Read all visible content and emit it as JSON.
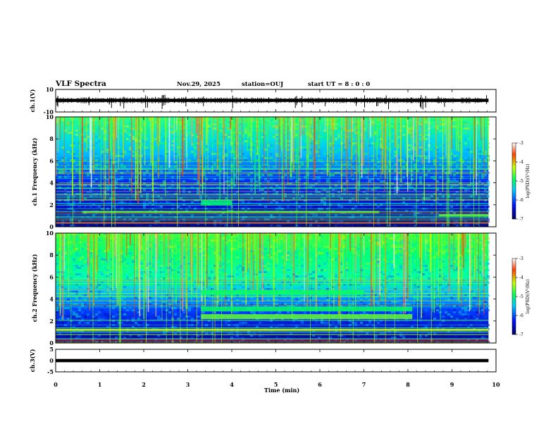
{
  "header": {
    "title": "VLF Spectra",
    "date": "Nov.29, 2025",
    "station": "station=OUJ",
    "start": "start  UT =   8 : 0  : 0"
  },
  "chart_data": [
    {
      "type": "line",
      "name": "waveform-ch1",
      "ylabel": "ch.1(V)",
      "ylim": [
        -10,
        10
      ],
      "yticks": [
        10,
        -10
      ],
      "x_range_min": [
        0,
        9.83
      ],
      "baseline_v": 0.3
    },
    {
      "type": "heatmap",
      "name": "spectrogram-ch1",
      "ylabel": "ch.1 Frequency (kHz)",
      "ylim": [
        0,
        10
      ],
      "yticks": [
        0,
        2,
        4,
        6,
        8,
        10
      ],
      "x_range_min": [
        0,
        9.83
      ],
      "colorbar": {
        "label": "log(PSD)(V²/Hz)",
        "range": [
          -7,
          -3
        ],
        "ticks": [
          "-3",
          "-4",
          "-5",
          "-6",
          "-7"
        ]
      },
      "bands_khz": [
        {
          "f": 1.35,
          "level": -4.6,
          "from_min": 0.6,
          "to_min": 7.35
        },
        {
          "f": 1.05,
          "level": -4.6,
          "from_min": 8.7,
          "to_min": 9.83
        },
        {
          "f": 2.2,
          "level": -5.0,
          "from_min": 3.3,
          "to_min": 4.0
        }
      ]
    },
    {
      "type": "heatmap",
      "name": "spectrogram-ch2",
      "ylabel": "ch.2 Frequency (kHz)",
      "ylim": [
        0,
        10
      ],
      "yticks": [
        0,
        2,
        4,
        6,
        8,
        10
      ],
      "x_range_min": [
        0,
        9.83
      ],
      "colorbar": {
        "label": "log(PSD)(V²/Hz)",
        "range": [
          -7,
          -3
        ],
        "ticks": [
          "-3",
          "-4",
          "-5",
          "-6",
          "-7"
        ]
      },
      "bands_khz": [
        {
          "f": 2.4,
          "level": -4.6,
          "from_min": 3.3,
          "to_min": 8.1
        },
        {
          "f": 3.1,
          "level": -4.9,
          "from_min": 3.3,
          "to_min": 8.1
        },
        {
          "f": 4.6,
          "level": -4.9,
          "from_min": 3.3,
          "to_min": 7.0
        },
        {
          "f": 1.2,
          "level": -4.3,
          "from_min": 0,
          "to_min": 9.83
        }
      ]
    },
    {
      "type": "line",
      "name": "waveform-ch3",
      "ylabel": "ch.3(V)",
      "ylim": [
        -5,
        5
      ],
      "yticks": [
        5,
        0,
        -5
      ],
      "x_range_min": [
        0,
        9.83
      ],
      "baseline_v": 0.0
    }
  ],
  "xaxis": {
    "label": "Time  (min)",
    "ticks": [
      0,
      1,
      2,
      3,
      4,
      5,
      6,
      7,
      8,
      9,
      10
    ],
    "range": [
      0,
      10
    ]
  }
}
